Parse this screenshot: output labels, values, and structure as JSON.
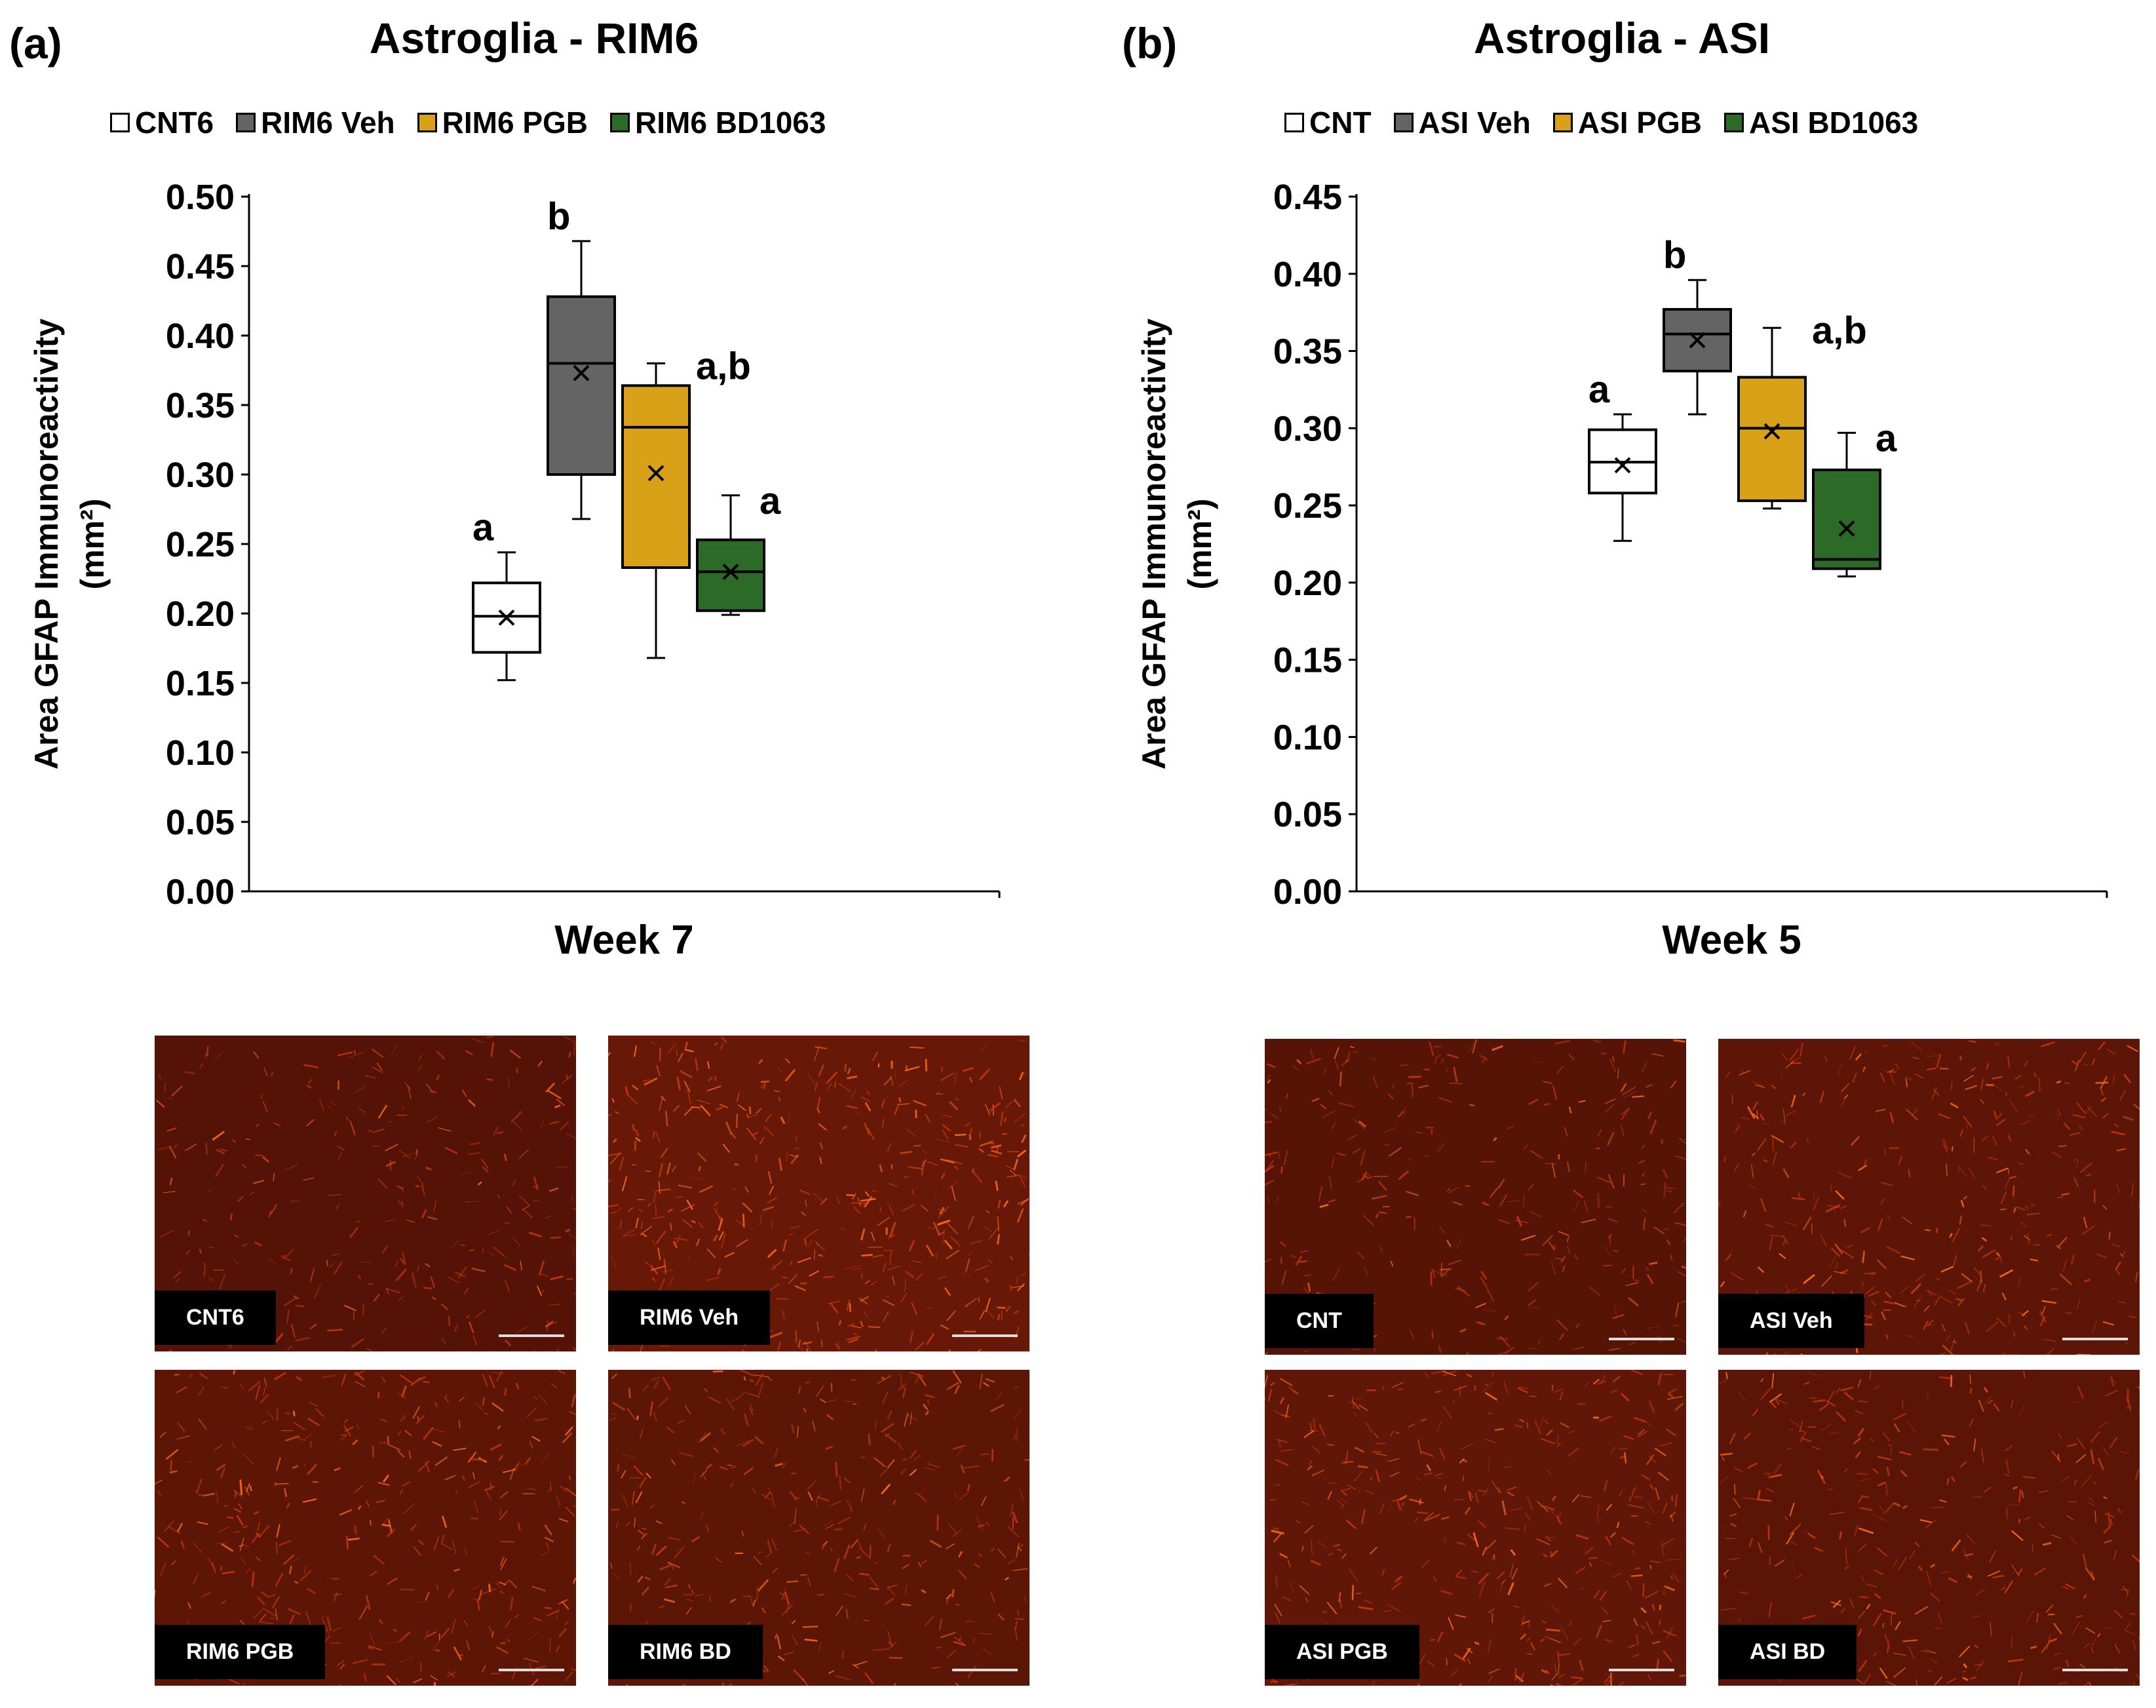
{
  "panels": [
    {
      "id": "a",
      "letter": "(a)",
      "title": "Astroglia - RIM6",
      "legend": [
        {
          "label": "CNT6",
          "color": "#ffffff"
        },
        {
          "label": "RIM6 Veh",
          "color": "#646464"
        },
        {
          "label": "RIM6 PGB",
          "color": "#d8a118"
        },
        {
          "label": "RIM6 BD1063",
          "color": "#2b6a27"
        }
      ],
      "images": [
        {
          "label": "CNT6",
          "intensity": 0.35
        },
        {
          "label": "RIM6 Veh",
          "intensity": 1.0
        },
        {
          "label": "RIM6 PGB",
          "intensity": 0.7
        },
        {
          "label": "RIM6 BD",
          "intensity": 0.6
        }
      ]
    },
    {
      "id": "b",
      "letter": "(b)",
      "title": "Astroglia - ASI",
      "legend": [
        {
          "label": "CNT",
          "color": "#ffffff"
        },
        {
          "label": "ASI Veh",
          "color": "#646464"
        },
        {
          "label": "ASI PGB",
          "color": "#d8a118"
        },
        {
          "label": "ASI BD1063",
          "color": "#2b6a27"
        }
      ],
      "images": [
        {
          "label": "CNT",
          "intensity": 0.4
        },
        {
          "label": "ASI Veh",
          "intensity": 0.65
        },
        {
          "label": "ASI PGB",
          "intensity": 0.75
        },
        {
          "label": "ASI BD",
          "intensity": 0.55
        }
      ]
    }
  ],
  "chart_data": [
    {
      "type": "box",
      "title": "Astroglia - RIM6",
      "xlabel": "Week 7",
      "ylabel": "Area GFAP Immunoreactivity",
      "ylabel_unit": "(mm²)",
      "ylim": [
        0,
        0.5
      ],
      "yticks": [
        "0.00",
        "0.05",
        "0.10",
        "0.15",
        "0.20",
        "0.25",
        "0.30",
        "0.35",
        "0.40",
        "0.45",
        "0.50"
      ],
      "series": [
        {
          "name": "CNT6",
          "color": "#ffffff",
          "min": 0.152,
          "q1": 0.172,
          "median": 0.198,
          "q3": 0.222,
          "max": 0.244,
          "mean": 0.197,
          "sig": "a"
        },
        {
          "name": "RIM6 Veh",
          "color": "#646464",
          "min": 0.268,
          "q1": 0.3,
          "median": 0.38,
          "q3": 0.428,
          "max": 0.468,
          "mean": 0.373,
          "sig": "b"
        },
        {
          "name": "RIM6 PGB",
          "color": "#d8a118",
          "min": 0.168,
          "q1": 0.233,
          "median": 0.334,
          "q3": 0.364,
          "max": 0.38,
          "mean": 0.301,
          "sig": "a,b"
        },
        {
          "name": "RIM6 BD1063",
          "color": "#2b6a27",
          "min": 0.199,
          "q1": 0.202,
          "median": 0.23,
          "q3": 0.253,
          "max": 0.285,
          "mean": 0.23,
          "sig": "a"
        }
      ]
    },
    {
      "type": "box",
      "title": "Astroglia - ASI",
      "xlabel": "Week 5",
      "ylabel": "Area GFAP Immunoreactivity",
      "ylabel_unit": "(mm²)",
      "ylim": [
        0,
        0.45
      ],
      "yticks": [
        "0.00",
        "0.05",
        "0.10",
        "0.15",
        "0.20",
        "0.25",
        "0.30",
        "0.35",
        "0.40",
        "0.45"
      ],
      "series": [
        {
          "name": "CNT",
          "color": "#ffffff",
          "min": 0.227,
          "q1": 0.258,
          "median": 0.278,
          "q3": 0.299,
          "max": 0.309,
          "mean": 0.276,
          "sig": "a"
        },
        {
          "name": "ASI Veh",
          "color": "#646464",
          "min": 0.309,
          "q1": 0.337,
          "median": 0.361,
          "q3": 0.377,
          "max": 0.396,
          "mean": 0.357,
          "sig": "b"
        },
        {
          "name": "ASI PGB",
          "color": "#d8a118",
          "min": 0.248,
          "q1": 0.253,
          "median": 0.3,
          "q3": 0.333,
          "max": 0.365,
          "mean": 0.298,
          "sig": "a,b"
        },
        {
          "name": "ASI BD1063",
          "color": "#2b6a27",
          "min": 0.204,
          "q1": 0.209,
          "median": 0.215,
          "q3": 0.273,
          "max": 0.297,
          "mean": 0.235,
          "sig": "a"
        }
      ]
    }
  ]
}
